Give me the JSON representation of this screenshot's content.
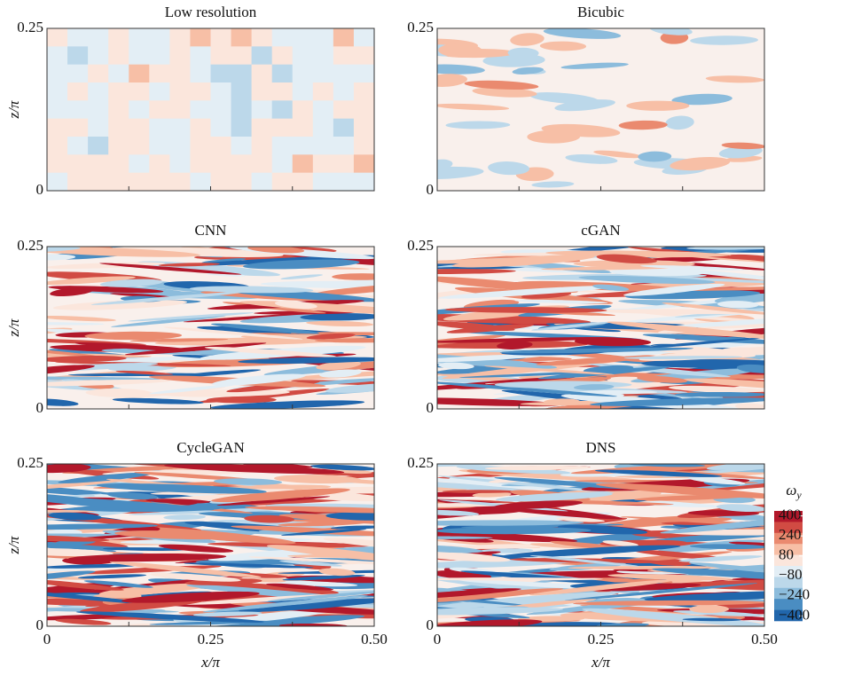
{
  "chart_data": [
    {
      "type": "field",
      "title": "Low resolution",
      "xlim": [
        0,
        0.5
      ],
      "ylim": [
        0,
        0.25
      ],
      "ylabel": "z/π",
      "yticks": [
        0,
        0.25
      ]
    },
    {
      "type": "field",
      "title": "Bicubic",
      "xlim": [
        0,
        0.5
      ],
      "ylim": [
        0,
        0.25
      ],
      "yticks": [
        0,
        0.25
      ]
    },
    {
      "type": "field",
      "title": "CNN",
      "xlim": [
        0,
        0.5
      ],
      "ylim": [
        0,
        0.25
      ],
      "ylabel": "z/π",
      "yticks": [
        0,
        0.25
      ]
    },
    {
      "type": "field",
      "title": "cGAN",
      "xlim": [
        0,
        0.5
      ],
      "ylim": [
        0,
        0.25
      ],
      "yticks": [
        0,
        0.25
      ]
    },
    {
      "type": "field",
      "title": "CycleGAN",
      "xlim": [
        0,
        0.5
      ],
      "ylim": [
        0,
        0.25
      ],
      "ylabel": "z/π",
      "xlabel": "x/π",
      "yticks": [
        0,
        0.25
      ],
      "xticks": [
        0,
        0.25,
        {
          "value": 0.5,
          "label": "0.50"
        }
      ]
    },
    {
      "type": "field",
      "title": "DNS",
      "xlim": [
        0,
        0.5
      ],
      "ylim": [
        0,
        0.25
      ],
      "xlabel": "x/π",
      "yticks": [
        0,
        0.25
      ],
      "xticks": [
        0,
        0.25,
        {
          "value": 0.5,
          "label": "0.50"
        }
      ],
      "colorbar": {
        "title": "ω",
        "title_sub": "y",
        "clim": [
          -440,
          440
        ],
        "ticks": [
          400,
          240,
          80,
          {
            "value": -80,
            "label": "−80"
          },
          {
            "value": -240,
            "label": "−240"
          },
          {
            "value": -400,
            "label": "−400"
          }
        ],
        "colors": [
          "#b2182b",
          "#d14b43",
          "#ea8a6f",
          "#f7bfa6",
          "#fbe6dc",
          "#e3eef5",
          "#bcd8ea",
          "#8cbcdc",
          "#4a8dc2",
          "#2166ac"
        ]
      }
    }
  ]
}
